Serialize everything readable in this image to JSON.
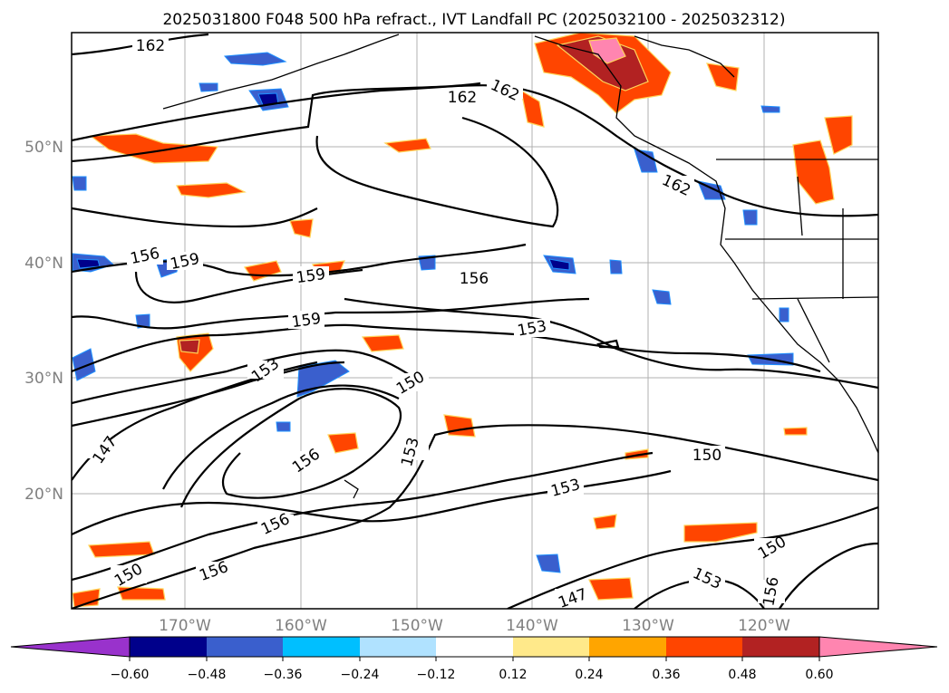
{
  "title": "2025031800 F048 500 hPa refract., IVT Landfall PC (2025032100 - 2025032312)",
  "lat_labels": [
    "50°N",
    "40°N",
    "30°N",
    "20°N"
  ],
  "lon_labels": [
    "170°W",
    "160°W",
    "150°W",
    "140°W",
    "130°W",
    "120°W"
  ],
  "contour_labels": [
    "162",
    "162",
    "162",
    "162",
    "156",
    "159",
    "159",
    "156",
    "159",
    "153",
    "153",
    "150",
    "147",
    "156",
    "153",
    "150",
    "153",
    "156",
    "150",
    "150",
    "153",
    "147",
    "156"
  ],
  "colorbar": {
    "ticks": [
      "−0.60",
      "−0.48",
      "−0.36",
      "−0.24",
      "−0.12",
      "0.12",
      "0.24",
      "0.36",
      "0.48",
      "0.60"
    ],
    "colors": [
      "#9932cc",
      "#00008b",
      "#3a5fcd",
      "#00bfff",
      "#b0e2ff",
      "#ffffff",
      "#ffe98a",
      "#ffa500",
      "#ff4500",
      "#b22222",
      "#ff85b0"
    ]
  }
}
